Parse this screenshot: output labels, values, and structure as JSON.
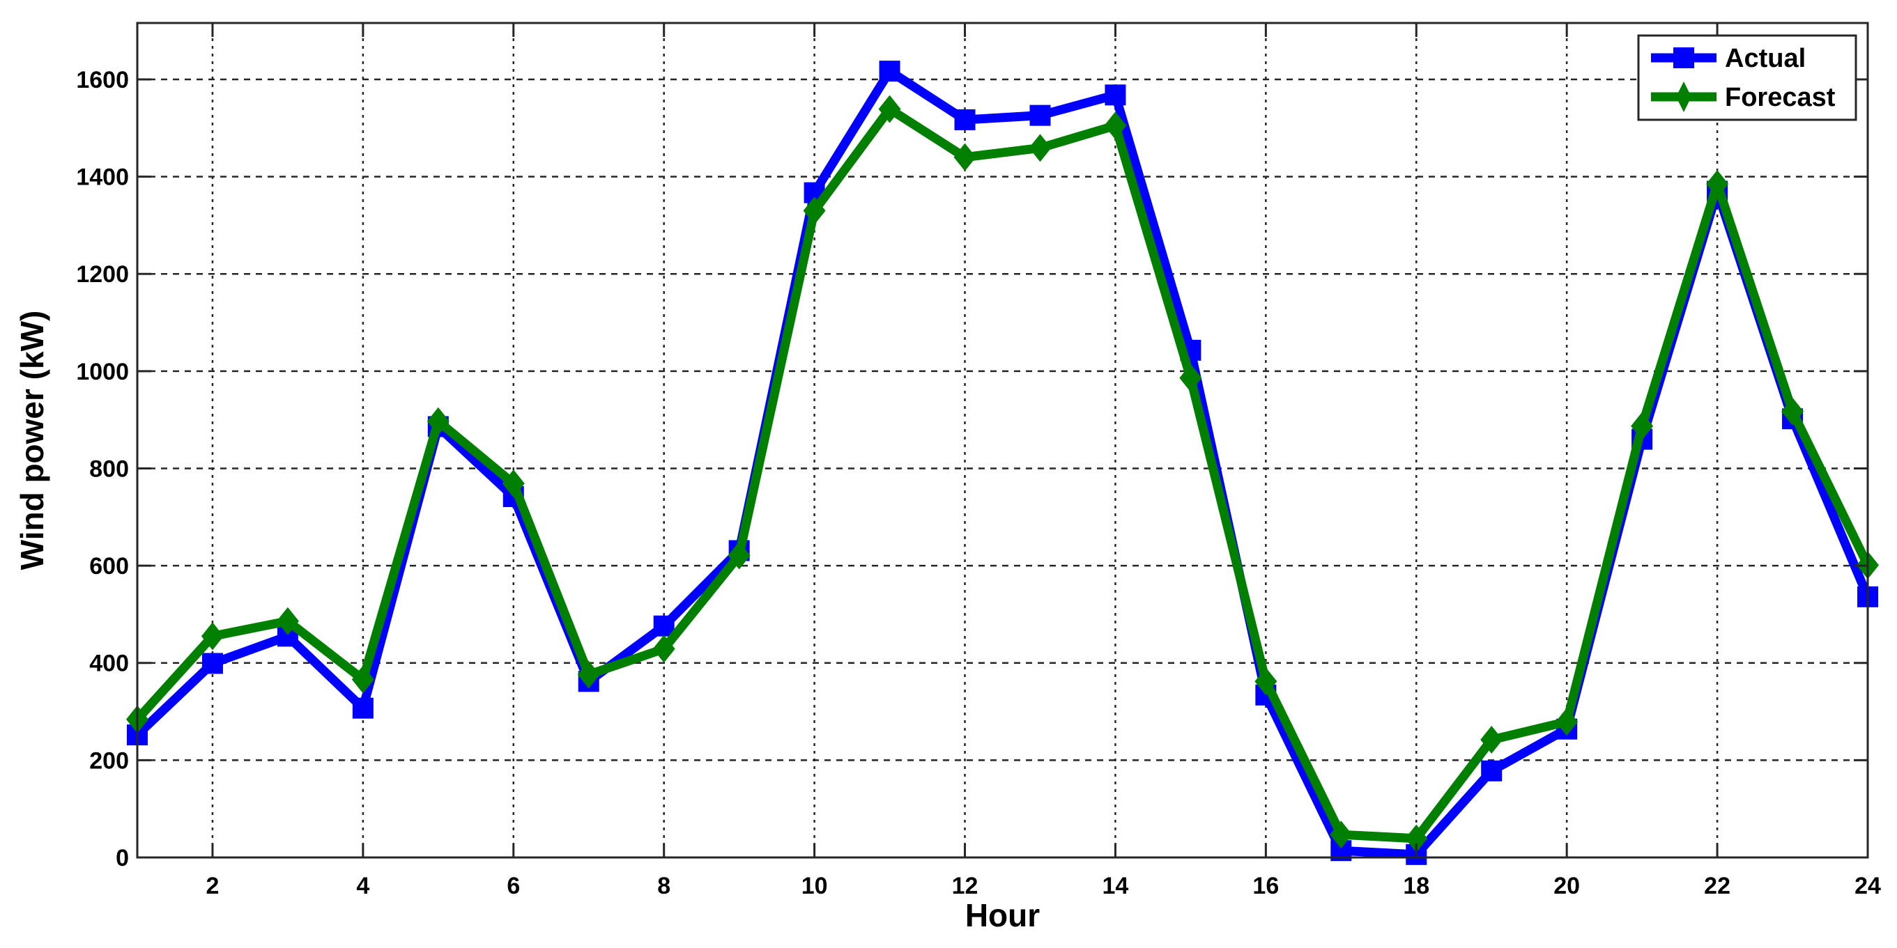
{
  "chart_data": {
    "type": "line",
    "title": "",
    "xlabel": "Hour",
    "ylabel": "Wind power (kW)",
    "x": [
      1,
      2,
      3,
      4,
      5,
      6,
      7,
      8,
      9,
      10,
      11,
      12,
      13,
      14,
      15,
      16,
      17,
      18,
      19,
      20,
      21,
      22,
      23,
      24
    ],
    "xlim": [
      1,
      24
    ],
    "ylim": [
      0,
      1716
    ],
    "xticks": [
      2,
      4,
      6,
      8,
      10,
      12,
      14,
      16,
      18,
      20,
      22,
      24
    ],
    "yticks": [
      0,
      200,
      400,
      600,
      800,
      1000,
      1200,
      1400,
      1600
    ],
    "grid": true,
    "legend_position": "upper right",
    "series": [
      {
        "name": "Actual",
        "color": "#0000ff",
        "marker": "square",
        "values": [
          252,
          399,
          455,
          307,
          886,
          742,
          362,
          476,
          631,
          1367,
          1617,
          1517,
          1526,
          1568,
          1043,
          334,
          14,
          6,
          178,
          264,
          860,
          1370,
          902,
          536
        ]
      },
      {
        "name": "Forecast",
        "color": "#007f00",
        "marker": "diamond",
        "values": [
          284,
          455,
          486,
          366,
          897,
          769,
          376,
          429,
          621,
          1330,
          1539,
          1440,
          1459,
          1505,
          986,
          362,
          47,
          39,
          242,
          279,
          887,
          1385,
          917,
          601
        ]
      }
    ]
  },
  "legend": {
    "items": [
      {
        "label": "Actual"
      },
      {
        "label": "Forecast"
      }
    ]
  },
  "axes": {
    "xlabel": "Hour",
    "ylabel": "Wind power (kW)"
  }
}
